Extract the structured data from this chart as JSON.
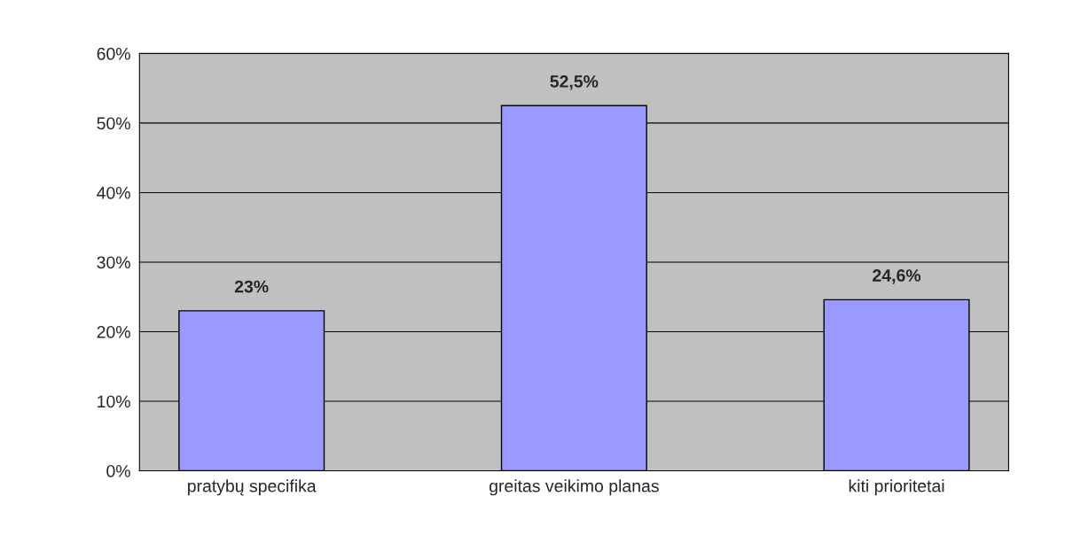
{
  "chart_data": {
    "type": "bar",
    "categories": [
      "pratybų specifika",
      "greitas veikimo planas",
      "kiti prioritetai"
    ],
    "values": [
      23,
      52.5,
      24.6
    ],
    "value_labels": [
      "23%",
      "52,5%",
      "24,6%"
    ],
    "color": "#9999ff",
    "ylim": [
      0,
      60
    ],
    "yticks": [
      {
        "value": 0,
        "label": "0%"
      },
      {
        "value": 10,
        "label": "10%"
      },
      {
        "value": 20,
        "label": "20%"
      },
      {
        "value": 30,
        "label": "30%"
      },
      {
        "value": 40,
        "label": "40%"
      },
      {
        "value": 50,
        "label": "50%"
      },
      {
        "value": 60,
        "label": "60%"
      }
    ],
    "grid": "y"
  }
}
